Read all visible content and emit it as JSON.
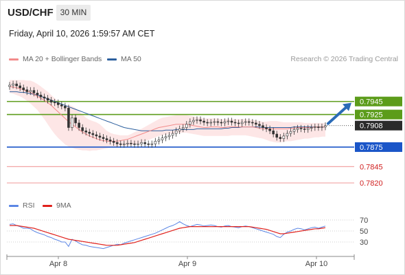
{
  "header": {
    "symbol": "USD/CHF",
    "timeframe": "30 MIN",
    "datetime": "Friday, April 10, 2026 1:59:57 AM CET"
  },
  "legend": {
    "ma20_label": "MA 20 + Bollinger Bands",
    "ma20_color": "#f28b8b",
    "ma50_label": "MA 50",
    "ma50_color": "#2c5f9e",
    "credit": "Research © 2026 Trading Central"
  },
  "rsi_legend": {
    "rsi_label": "RSI",
    "rsi_color": "#5b86e5",
    "ma_label": "9MA",
    "ma_color": "#e0201b"
  },
  "chart_data": [
    {
      "type": "candlestick",
      "yrange": [
        0.78,
        0.799
      ],
      "x_ticks": [
        "Apr 8",
        "Apr 9",
        "Apr 10"
      ],
      "current_price": "0.7908",
      "levels": [
        {
          "value": "0.7945",
          "color": "#5c9c1a",
          "label_bg": "#5c9c1a",
          "label_color": "#ffffff"
        },
        {
          "value": "0.7925",
          "color": "#5c9c1a",
          "label_bg": "#5c9c1a",
          "label_color": "#ffffff"
        },
        {
          "value": "0.7875",
          "color": "#1a55c8",
          "label_bg": "#1a55c8",
          "label_color": "#ffffff"
        },
        {
          "value": "0.7845",
          "color": "#f2a5a5",
          "label_bg": "none",
          "label_color": "#d02020"
        },
        {
          "value": "0.7820",
          "color": "#f2a5a5",
          "label_bg": "none",
          "label_color": "#d02020"
        }
      ],
      "close_series": [
        0.797,
        0.7972,
        0.7969,
        0.7966,
        0.7963,
        0.796,
        0.7962,
        0.7958,
        0.7955,
        0.7952,
        0.795,
        0.7947,
        0.7944,
        0.7943,
        0.794,
        0.7938,
        0.7935,
        0.7905,
        0.792,
        0.7912,
        0.7905,
        0.79,
        0.7898,
        0.7896,
        0.7894,
        0.7892,
        0.789,
        0.7888,
        0.7886,
        0.7884,
        0.7882,
        0.788,
        0.7879,
        0.788,
        0.7881,
        0.788,
        0.7879,
        0.788,
        0.7882,
        0.788,
        0.7879,
        0.788,
        0.7884,
        0.7886,
        0.7889,
        0.7891,
        0.7893,
        0.7896,
        0.79,
        0.7903,
        0.7905,
        0.791,
        0.7914,
        0.7916,
        0.7917,
        0.7915,
        0.7913,
        0.7912,
        0.7913,
        0.7914,
        0.7913,
        0.7912,
        0.7914,
        0.7915,
        0.7913,
        0.7912,
        0.7911,
        0.7913,
        0.7914,
        0.7913,
        0.7912,
        0.791,
        0.7908,
        0.7905,
        0.7903,
        0.79,
        0.7895,
        0.789,
        0.7888,
        0.7892,
        0.7896,
        0.7899,
        0.7902,
        0.7904,
        0.7903,
        0.7902,
        0.7904,
        0.7905,
        0.7906,
        0.7905,
        0.7906,
        0.7908
      ],
      "ma20": [
        0.7968,
        0.7967,
        0.7966,
        0.7965,
        0.7963,
        0.7961,
        0.7959,
        0.7956,
        0.7953,
        0.795,
        0.7947,
        0.7943,
        0.7939,
        0.7934,
        0.7929,
        0.7924,
        0.7919,
        0.7914,
        0.791,
        0.7906,
        0.7902,
        0.7898,
        0.7895,
        0.7892,
        0.789,
        0.7888,
        0.7886,
        0.7885,
        0.7884,
        0.7884,
        0.7884,
        0.7884,
        0.7885,
        0.7886,
        0.7887,
        0.7889,
        0.7891,
        0.7893,
        0.7895,
        0.7897,
        0.7899,
        0.7901,
        0.7903,
        0.7905,
        0.7906,
        0.7907,
        0.7908,
        0.7909,
        0.791,
        0.791,
        0.791,
        0.791,
        0.7909,
        0.7908,
        0.7907,
        0.7906,
        0.7905,
        0.7905,
        0.7906,
        0.7906,
        0.7906,
        0.7905,
        0.7905,
        0.7906,
        0.7906,
        0.7906,
        0.7906,
        0.7906,
        0.7906,
        0.7906,
        0.7906,
        0.7905,
        0.7904,
        0.7903,
        0.7903,
        0.7903,
        0.7903,
        0.7903,
        0.7903,
        0.7903,
        0.7903,
        0.7904,
        0.7904,
        0.7905,
        0.7905,
        0.7905,
        0.7905,
        0.7905,
        0.7906,
        0.7906,
        0.7906,
        0.7906
      ],
      "bb_upper": [
        0.7978,
        0.7978,
        0.7978,
        0.7978,
        0.7978,
        0.7977,
        0.7977,
        0.7975,
        0.7972,
        0.7968,
        0.7964,
        0.796,
        0.7955,
        0.795,
        0.7945,
        0.794,
        0.7935,
        0.794,
        0.7938,
        0.7935,
        0.793,
        0.7925,
        0.792,
        0.7917,
        0.7915,
        0.7913,
        0.791,
        0.7905,
        0.79,
        0.7897,
        0.7895,
        0.7894,
        0.7893,
        0.7893,
        0.7893,
        0.7895,
        0.7898,
        0.79,
        0.7903,
        0.7906,
        0.7909,
        0.7912,
        0.7915,
        0.7918,
        0.792,
        0.7921,
        0.7922,
        0.7923,
        0.7924,
        0.7924,
        0.7924,
        0.7924,
        0.7923,
        0.7922,
        0.7921,
        0.792,
        0.7919,
        0.7919,
        0.7919,
        0.7919,
        0.7919,
        0.7918,
        0.7918,
        0.7918,
        0.7918,
        0.7918,
        0.7918,
        0.7918,
        0.7918,
        0.7917,
        0.7917,
        0.7916,
        0.7915,
        0.7914,
        0.7914,
        0.7915,
        0.7915,
        0.7915,
        0.7914,
        0.7913,
        0.7913,
        0.7913,
        0.7913,
        0.7913,
        0.7913,
        0.7912,
        0.7912,
        0.7912,
        0.7912,
        0.7912,
        0.7912,
        0.7912
      ],
      "bb_lower": [
        0.7958,
        0.7957,
        0.7955,
        0.7953,
        0.795,
        0.7946,
        0.7942,
        0.7937,
        0.7932,
        0.7925,
        0.7918,
        0.791,
        0.7902,
        0.7895,
        0.7889,
        0.7884,
        0.7879,
        0.7876,
        0.7874,
        0.7872,
        0.7871,
        0.787,
        0.787,
        0.7869,
        0.787,
        0.787,
        0.7871,
        0.7872,
        0.7873,
        0.7874,
        0.7875,
        0.7876,
        0.7877,
        0.7877,
        0.7877,
        0.7878,
        0.7879,
        0.788,
        0.7882,
        0.7884,
        0.7886,
        0.7888,
        0.789,
        0.7892,
        0.7893,
        0.7894,
        0.7895,
        0.7896,
        0.7896,
        0.7897,
        0.7897,
        0.7897,
        0.7896,
        0.7895,
        0.7894,
        0.7893,
        0.7892,
        0.7892,
        0.7892,
        0.7892,
        0.7892,
        0.7892,
        0.7892,
        0.7892,
        0.7893,
        0.7893,
        0.7893,
        0.7893,
        0.7893,
        0.7892,
        0.7891,
        0.789,
        0.7889,
        0.7888,
        0.7886,
        0.7884,
        0.7883,
        0.7882,
        0.7882,
        0.7883,
        0.7884,
        0.7884,
        0.7885,
        0.7886,
        0.7887,
        0.7888,
        0.7888,
        0.7889,
        0.789,
        0.789,
        0.7891,
        0.7891
      ],
      "ma50": [
        0.796,
        0.796,
        0.796,
        0.7959,
        0.7959,
        0.7958,
        0.7957,
        0.7956,
        0.7955,
        0.7953,
        0.7951,
        0.7949,
        0.7947,
        0.7945,
        0.7943,
        0.7941,
        0.7939,
        0.7937,
        0.7935,
        0.7933,
        0.7931,
        0.7929,
        0.7927,
        0.7925,
        0.7923,
        0.7921,
        0.7919,
        0.7917,
        0.7915,
        0.7913,
        0.7911,
        0.7909,
        0.7907,
        0.7905,
        0.7904,
        0.7903,
        0.7902,
        0.7901,
        0.79,
        0.79,
        0.79,
        0.79,
        0.79,
        0.79,
        0.79,
        0.7901,
        0.7901,
        0.7901,
        0.7902,
        0.7902,
        0.7902,
        0.7902,
        0.7902,
        0.7902,
        0.7903,
        0.7903,
        0.7903,
        0.7903,
        0.7903,
        0.7903,
        0.7903,
        0.7903,
        0.7904,
        0.7904,
        0.7905,
        0.7905,
        0.7905,
        0.7906,
        0.7906,
        0.7906,
        0.7906,
        0.7906,
        0.7906,
        0.7905,
        0.7905,
        0.7905,
        0.7905,
        0.7905,
        0.7905,
        0.7905,
        0.7905,
        0.7905,
        0.7906,
        0.7906,
        0.7906,
        0.7906,
        0.7906,
        0.7906,
        0.7906,
        0.7906,
        0.7906,
        0.7906
      ]
    },
    {
      "type": "line",
      "yrange": [
        0,
        100
      ],
      "y_ticks": [
        "70",
        "50",
        "30"
      ],
      "rsi": [
        62,
        63,
        60,
        58,
        55,
        55,
        54,
        50,
        47,
        45,
        43,
        40,
        38,
        35,
        33,
        30,
        30,
        22,
        35,
        32,
        28,
        25,
        24,
        22,
        21,
        20,
        19,
        18,
        20,
        22,
        24,
        26,
        25,
        28,
        30,
        32,
        34,
        36,
        38,
        40,
        42,
        44,
        46,
        49,
        52,
        55,
        58,
        60,
        63,
        67,
        63,
        60,
        58,
        60,
        62,
        61,
        59,
        60,
        61,
        60,
        58,
        57,
        59,
        60,
        58,
        57,
        56,
        58,
        59,
        58,
        56,
        54,
        52,
        50,
        48,
        46,
        44,
        40,
        38,
        44,
        48,
        50,
        53,
        55,
        54,
        52,
        54,
        56,
        57,
        55,
        57,
        59
      ],
      "rsi_ma": [
        60,
        60,
        60,
        59,
        58,
        57,
        56,
        55,
        53,
        51,
        49,
        47,
        45,
        43,
        41,
        39,
        37,
        35,
        34,
        33,
        32,
        31,
        30,
        29,
        28,
        27,
        26,
        25,
        24,
        24,
        24,
        24,
        25,
        26,
        27,
        28,
        29,
        31,
        33,
        35,
        37,
        39,
        41,
        43,
        45,
        47,
        49,
        51,
        53,
        55,
        56,
        57,
        58,
        58,
        58,
        58,
        58,
        58,
        58,
        58,
        58,
        58,
        58,
        58,
        58,
        58,
        58,
        58,
        58,
        58,
        57,
        56,
        55,
        54,
        53,
        51,
        49,
        47,
        45,
        45,
        46,
        47,
        48,
        49,
        50,
        51,
        52,
        53,
        54,
        54,
        55,
        56
      ]
    }
  ]
}
